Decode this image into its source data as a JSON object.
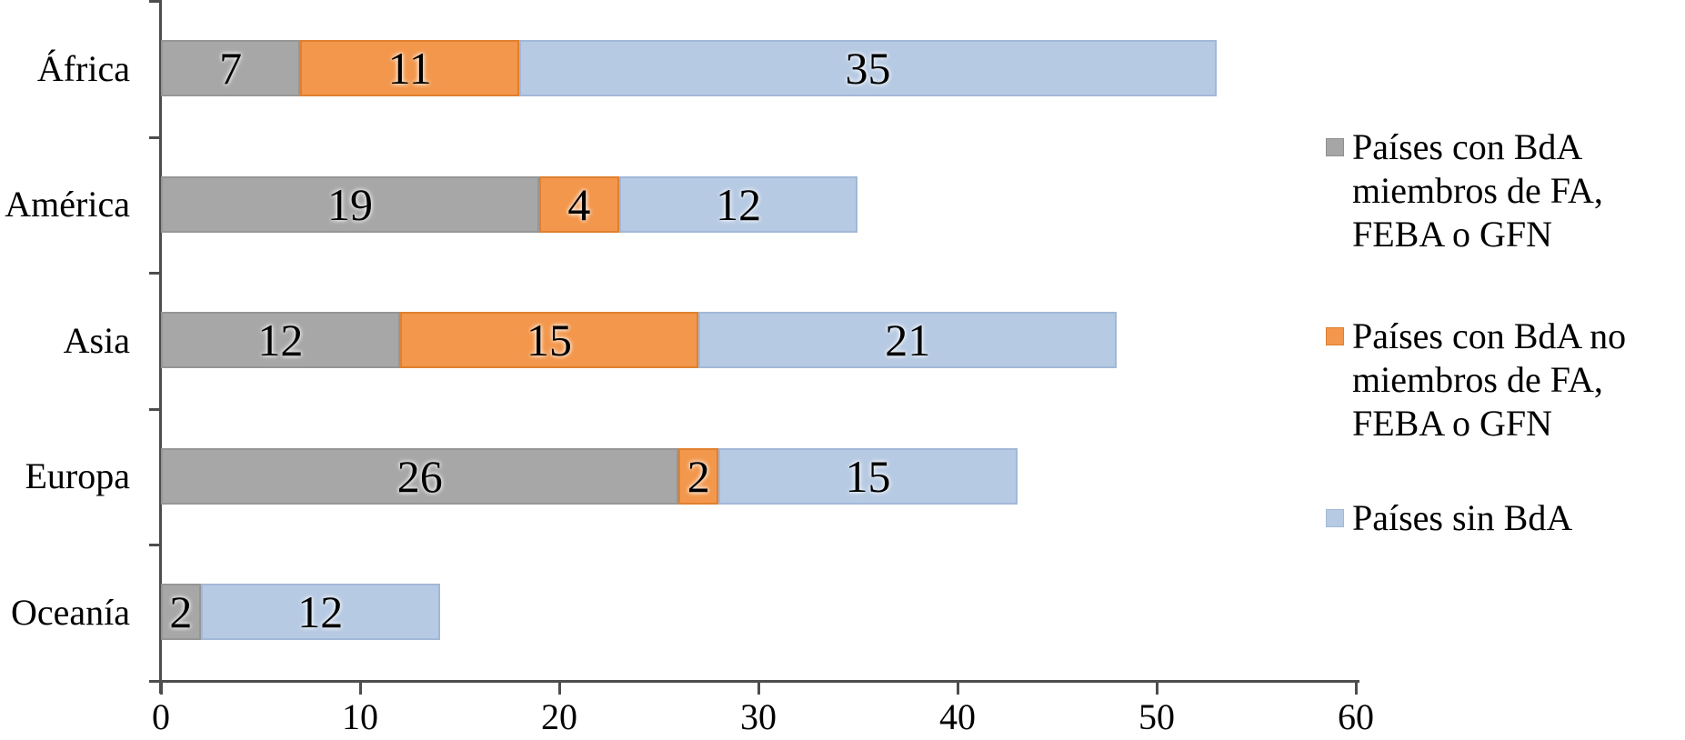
{
  "figure": {
    "background": "#FFFFFF"
  },
  "chart_data": {
    "type": "bar",
    "orientation": "horizontal",
    "stacked": true,
    "title": "",
    "xlabel": "",
    "ylabel": "",
    "categories": [
      "África",
      "América",
      "Asia",
      "Europa",
      "Oceanía"
    ],
    "series": [
      {
        "name": "Países con BdA miembros de FA, FEBA o GFN",
        "color": "#A7A7A7",
        "border_color": "#969696",
        "values": [
          7,
          19,
          12,
          26,
          2
        ]
      },
      {
        "name": "Países con BdA no miembros de FA, FEBA o GFN",
        "color": "#F2974C",
        "border_color": "#E0802F",
        "values": [
          11,
          4,
          15,
          2,
          0
        ]
      },
      {
        "name": "Países sin BdA",
        "color": "#B7CAE3",
        "border_color": "#A2B8D8",
        "values": [
          35,
          12,
          21,
          15,
          12
        ]
      }
    ],
    "totals": [
      53,
      35,
      48,
      43,
      14
    ],
    "xlim": [
      0,
      60
    ],
    "x_tick_values": [
      0,
      10,
      20,
      30,
      40,
      50,
      60
    ],
    "x_tick_labels": [
      "0",
      "10",
      "20",
      "30",
      "40",
      "50",
      "60"
    ],
    "grid": false,
    "data_labels": "inside-center",
    "legend_position": "right",
    "legend": {
      "items": [
        {
          "swatch_color": "#A6A6A6",
          "swatch_border": "#8F8F8F",
          "lines": [
            "Países con BdA",
            "miembros de FA,",
            "FEBA o GFN"
          ]
        },
        {
          "swatch_color": "#F2974C",
          "swatch_border": "#DE8030",
          "lines": [
            "Países con BdA no",
            "miembros de FA,",
            "FEBA o GFN"
          ]
        },
        {
          "swatch_color": "#B7CAE3",
          "swatch_border": "#A2B8D8",
          "lines": [
            "Países sin BdA"
          ]
        }
      ]
    },
    "axis_color": "#4D4D4D",
    "text_color": "#000000"
  }
}
